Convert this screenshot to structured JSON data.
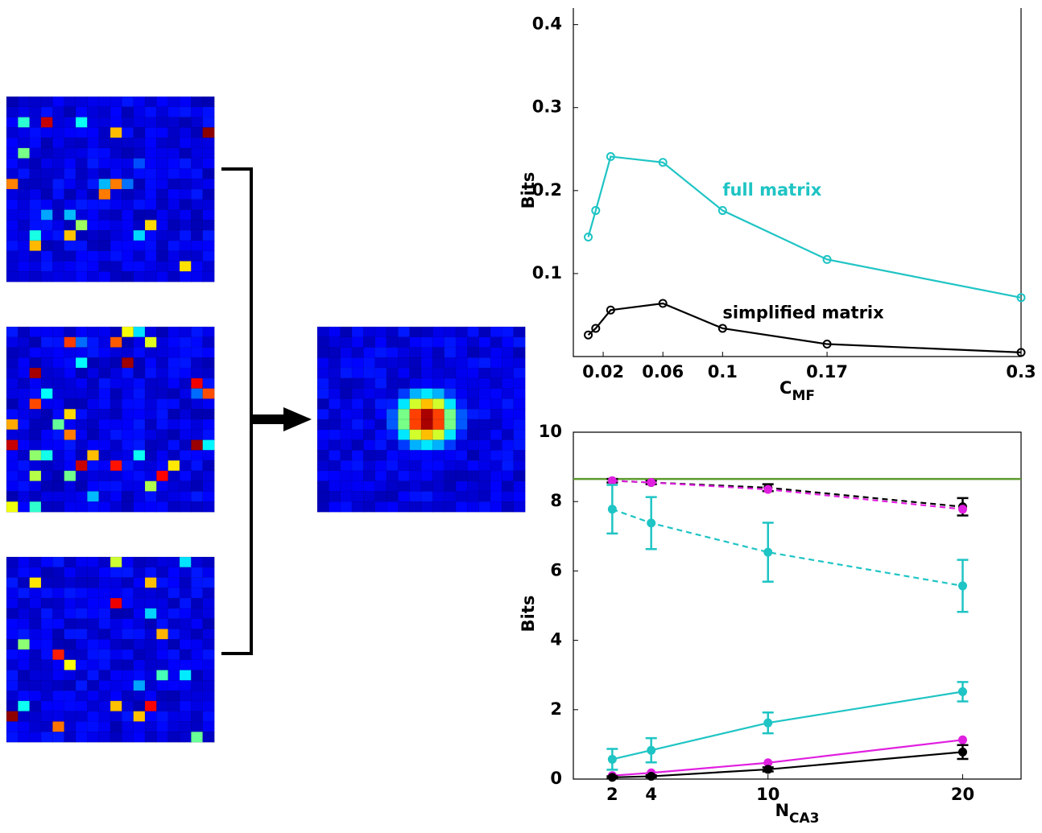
{
  "chart_data": [
    {
      "type": "line",
      "ylabel": "Bits",
      "xlabel": "C",
      "xlabel_sub": "MF",
      "x": [
        0.01,
        0.015,
        0.025,
        0.06,
        0.1,
        0.17,
        0.3
      ],
      "series": [
        {
          "color": "#1fc4c4",
          "values": [
            0.144,
            0.176,
            0.241,
            0.234,
            0.176,
            0.117,
            0.071
          ]
        },
        {
          "color": "#000000",
          "values": [
            0.026,
            0.034,
            0.056,
            0.064,
            0.034,
            0.015,
            0.005
          ]
        }
      ],
      "annotations": [
        {
          "text": "full matrix",
          "color": "#1fc4c4",
          "x": 0.1,
          "y": 0.2
        },
        {
          "text": "simplified matrix",
          "color": "#000000",
          "x": 0.1,
          "y": 0.052
        }
      ],
      "xlim": [
        0,
        0.3
      ],
      "xticks": [
        0.02,
        0.06,
        0.1,
        0.17,
        0.3
      ],
      "ylim": [
        0,
        0.42
      ],
      "yticks": [
        0.1,
        0.2,
        0.3,
        0.4
      ]
    },
    {
      "type": "errorline",
      "ylabel": "Bits",
      "xlabel": "N",
      "xlabel_sub": "CA3",
      "x": [
        2,
        4,
        10,
        20
      ],
      "hline": {
        "value": 8.65,
        "color": "#5c9a2e"
      },
      "series": [
        {
          "color": "#000000",
          "dash": true,
          "values": [
            8.6,
            8.55,
            8.4,
            7.85
          ],
          "errors": [
            0.05,
            0.05,
            0.1,
            0.25
          ]
        },
        {
          "color": "#e020e0",
          "dash": true,
          "values": [
            8.6,
            8.55,
            8.35,
            7.78
          ]
        },
        {
          "color": "#1fc4c4",
          "dash": true,
          "values": [
            7.78,
            7.38,
            6.54,
            5.57
          ],
          "errors": [
            0.7,
            0.75,
            0.85,
            0.75
          ]
        },
        {
          "color": "#1fc4c4",
          "values": [
            0.57,
            0.83,
            1.62,
            2.52
          ],
          "errors": [
            0.3,
            0.35,
            0.3,
            0.28
          ]
        },
        {
          "color": "#e020e0",
          "values": [
            0.1,
            0.18,
            0.47,
            1.13
          ]
        },
        {
          "color": "#000000",
          "values": [
            0.05,
            0.08,
            0.28,
            0.78
          ],
          "errors": [
            0.03,
            0.03,
            0.06,
            0.2
          ]
        }
      ],
      "xlim": [
        0,
        23
      ],
      "xticks": [
        2,
        4,
        10,
        20
      ],
      "ylim": [
        0,
        10
      ],
      "yticks": [
        0,
        2,
        4,
        6,
        8,
        10
      ]
    }
  ]
}
